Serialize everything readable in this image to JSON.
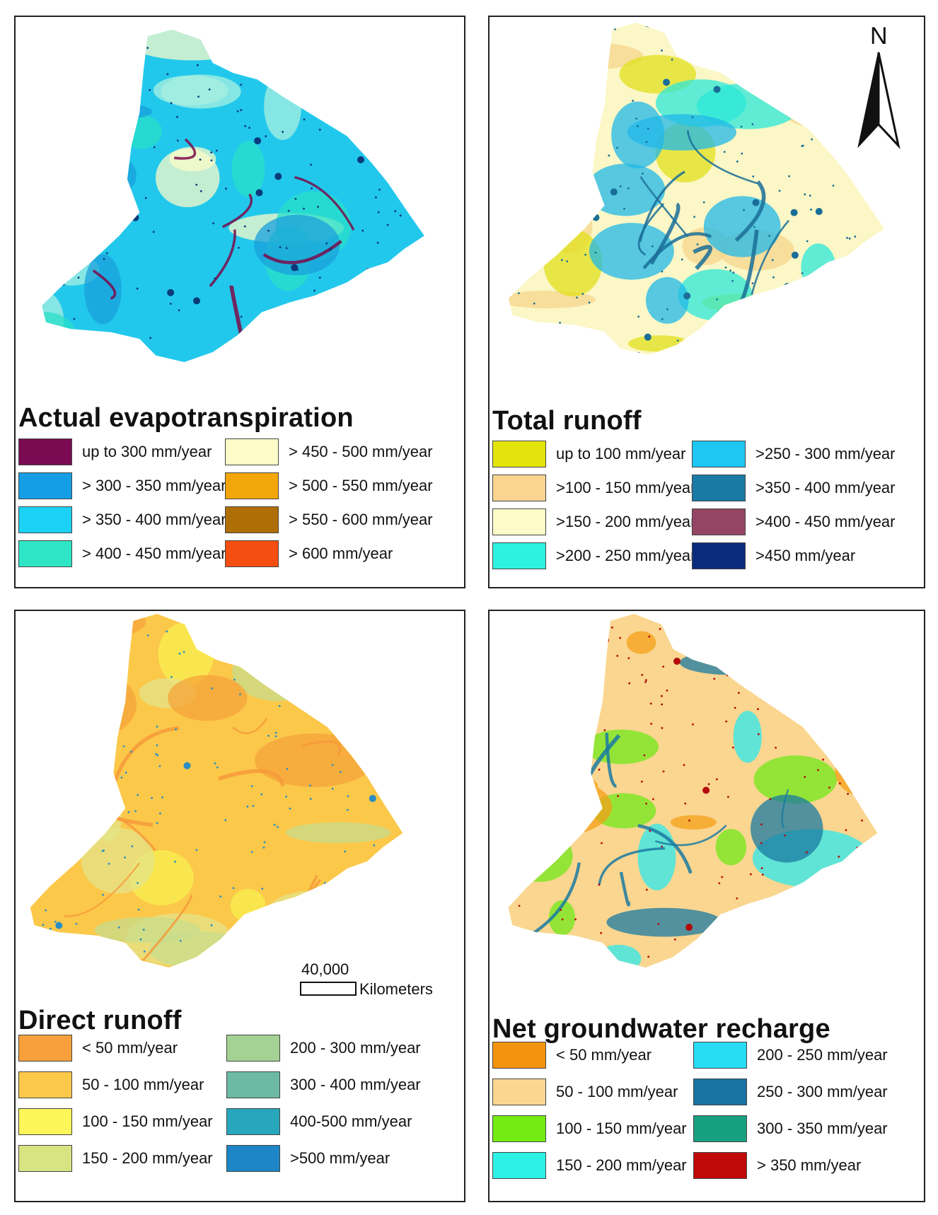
{
  "north_arrow": {
    "label": "N"
  },
  "scale": {
    "value": "40,000",
    "unit": "Kilometers"
  },
  "panels": [
    {
      "title": "Actual evapotranspiration",
      "base_color": "#22c8ec",
      "patch_colors": [
        "#a8f0e0",
        "#fbfbc8",
        "#28e0c8",
        "#1aa0dc"
      ],
      "spot_color": "#0a3a7a",
      "river_color": "#7a0a4a",
      "legend": [
        {
          "label": "up to 300 mm/year",
          "color": "#7a0a52"
        },
        {
          "label": "> 300 - 350 mm/year",
          "color": "#159ee6"
        },
        {
          "label": "> 350 - 400 mm/year",
          "color": "#1cd2f4"
        },
        {
          "label": "> 400 - 450 mm/year",
          "color": "#2ee6c6"
        },
        {
          "label": "> 450 - 500 mm/year",
          "color": "#fdfbc8"
        },
        {
          "label": "> 500 - 550 mm/year",
          "color": "#f2a60a"
        },
        {
          "label": "> 550 - 600 mm/year",
          "color": "#b06e06"
        },
        {
          "label": "> 600 mm/year",
          "color": "#f44e10"
        }
      ]
    },
    {
      "title": "Total runoff",
      "base_color": "#fbf7c6",
      "patch_colors": [
        "#f7d68c",
        "#e2e01c",
        "#2ce8d8",
        "#20b8e8"
      ],
      "spot_color": "#1a6e98",
      "river_color": "#1a6e98",
      "legend": [
        {
          "label": "up to 100 mm/year",
          "color": "#e4e40c"
        },
        {
          "label": ">100 - 150 mm/year",
          "color": "#fad490"
        },
        {
          "label": ">150 - 200 mm/year",
          "color": "#fdfbc8"
        },
        {
          "label": ">200 - 250 mm/year",
          "color": "#2ef2e0"
        },
        {
          "label": ">250 - 300 mm/year",
          "color": "#1ec6f4"
        },
        {
          "label": ">350 - 400 mm/year",
          "color": "#1a7aa6"
        },
        {
          "label": ">400 - 450 mm/year",
          "color": "#964464"
        },
        {
          "label": ">450 mm/year",
          "color": "#0c2a7c"
        }
      ]
    },
    {
      "title": "Direct runoff",
      "base_color": "#fbc84a",
      "patch_colors": [
        "#f8f050",
        "#e4e48a",
        "#c8dc8c",
        "#f6a43a"
      ],
      "spot_color": "#2a8ec4",
      "river_color": "#f69a3a",
      "legend": [
        {
          "label": "< 50 mm/year",
          "color": "#f8a03c"
        },
        {
          "label": "50 - 100 mm/year",
          "color": "#fcc84a"
        },
        {
          "label": "100 - 150 mm/year",
          "color": "#fcf65a"
        },
        {
          "label": "150 - 200 mm/year",
          "color": "#d8e482"
        },
        {
          "label": "200 - 300 mm/year",
          "color": "#a4d294"
        },
        {
          "label": "300 - 400 mm/year",
          "color": "#6cbaa4"
        },
        {
          "label": "400-500 mm/year",
          "color": "#28a6bc"
        },
        {
          "label": ">500 mm/year",
          "color": "#1c86c6"
        }
      ]
    },
    {
      "title": "Net groundwater recharge",
      "base_color": "#fad690",
      "patch_colors": [
        "#72e81a",
        "#2ce8ec",
        "#f4a018",
        "#1a7aa2"
      ],
      "spot_color": "#b40a0a",
      "river_color": "#1a7aa2",
      "legend": [
        {
          "label": "< 50 mm/year",
          "color": "#f4940e"
        },
        {
          "label": "50 - 100 mm/year",
          "color": "#fad690"
        },
        {
          "label": "100 - 150 mm/year",
          "color": "#74ec14"
        },
        {
          "label": "150 - 200 mm/year",
          "color": "#2cf2e6"
        },
        {
          "label": "200 - 250 mm/year",
          "color": "#28dcf6"
        },
        {
          "label": "250 - 300 mm/year",
          "color": "#1a72a2"
        },
        {
          "label": "300 - 350 mm/year",
          "color": "#16a080"
        },
        {
          "label": "> 350 mm/year",
          "color": "#c00a0a"
        }
      ]
    }
  ]
}
